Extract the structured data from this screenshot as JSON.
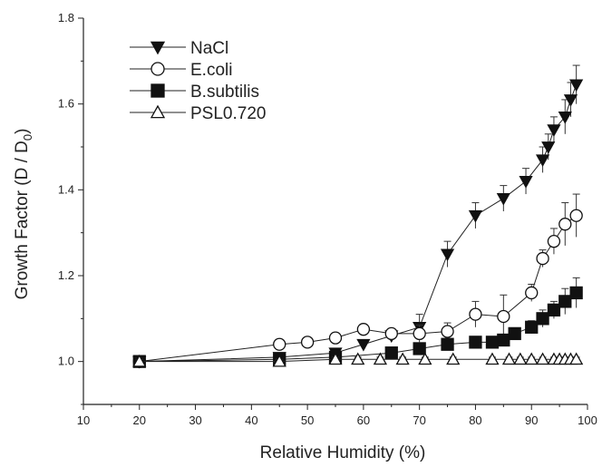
{
  "chart_data": {
    "type": "scatter",
    "xlabel": "Relative Humidity (%)",
    "ylabel_main": "Growth Factor (D / D",
    "ylabel_sub": "0",
    "ylabel_close": ")",
    "xlim": [
      10,
      100
    ],
    "ylim": [
      0.9,
      1.8
    ],
    "xticks": [
      10,
      20,
      30,
      40,
      50,
      60,
      70,
      80,
      90,
      100
    ],
    "yticks": [
      1.0,
      1.2,
      1.4,
      1.6,
      1.8
    ],
    "ytick_labels": [
      "1.0",
      "1.2",
      "1.4",
      "1.6",
      "1.8"
    ],
    "grid": false,
    "legend_position": "top-left",
    "series": [
      {
        "name": "NaCl",
        "marker": "triangle-down",
        "filled": true,
        "color": "#111111",
        "x": [
          20,
          45,
          55,
          60,
          65,
          70,
          75,
          80,
          85,
          89,
          92,
          93,
          94,
          96,
          97,
          98
        ],
        "y": [
          1.0,
          1.01,
          1.02,
          1.04,
          1.06,
          1.08,
          1.25,
          1.34,
          1.38,
          1.42,
          1.47,
          1.5,
          1.54,
          1.57,
          1.61,
          1.645
        ],
        "err": [
          0.01,
          0.01,
          0.01,
          0.01,
          0.01,
          0.03,
          0.03,
          0.03,
          0.03,
          0.03,
          0.03,
          0.03,
          0.03,
          0.04,
          0.04,
          0.045
        ]
      },
      {
        "name": "E.coli",
        "marker": "circle",
        "filled": false,
        "color": "#111111",
        "x": [
          20,
          45,
          50,
          55,
          60,
          65,
          70,
          75,
          80,
          85,
          90,
          92,
          94,
          96,
          98
        ],
        "y": [
          1.0,
          1.04,
          1.045,
          1.055,
          1.075,
          1.065,
          1.065,
          1.07,
          1.11,
          1.105,
          1.16,
          1.24,
          1.28,
          1.32,
          1.34
        ],
        "err": [
          0.01,
          0.01,
          0.01,
          0.01,
          0.01,
          0.01,
          0.02,
          0.02,
          0.03,
          0.05,
          0.02,
          0.02,
          0.03,
          0.05,
          0.05
        ]
      },
      {
        "name": "B.subtilis",
        "marker": "square",
        "filled": true,
        "color": "#111111",
        "x": [
          20,
          45,
          55,
          65,
          70,
          75,
          80,
          83,
          85,
          87,
          90,
          92,
          94,
          96,
          98
        ],
        "y": [
          1.0,
          1.005,
          1.01,
          1.02,
          1.03,
          1.04,
          1.045,
          1.045,
          1.05,
          1.065,
          1.08,
          1.1,
          1.12,
          1.14,
          1.16
        ],
        "err": [
          0.005,
          0.005,
          0.005,
          0.01,
          0.01,
          0.01,
          0.01,
          0.01,
          0.01,
          0.01,
          0.015,
          0.02,
          0.02,
          0.03,
          0.035
        ]
      },
      {
        "name": "PSL0.720",
        "marker": "triangle-up",
        "filled": false,
        "color": "#111111",
        "x": [
          20,
          45,
          55,
          59,
          63,
          67,
          71,
          76,
          83,
          86,
          88,
          90,
          92,
          94,
          95,
          96,
          97,
          98
        ],
        "y": [
          1.0,
          1.0,
          1.005,
          1.005,
          1.005,
          1.005,
          1.005,
          1.005,
          1.005,
          1.005,
          1.005,
          1.005,
          1.005,
          1.005,
          1.005,
          1.005,
          1.005,
          1.005
        ],
        "err": [
          0.005,
          0.005,
          0.005,
          0.005,
          0.005,
          0.005,
          0.005,
          0.005,
          0.005,
          0.005,
          0.005,
          0.005,
          0.005,
          0.005,
          0.005,
          0.005,
          0.005,
          0.005
        ]
      }
    ]
  }
}
